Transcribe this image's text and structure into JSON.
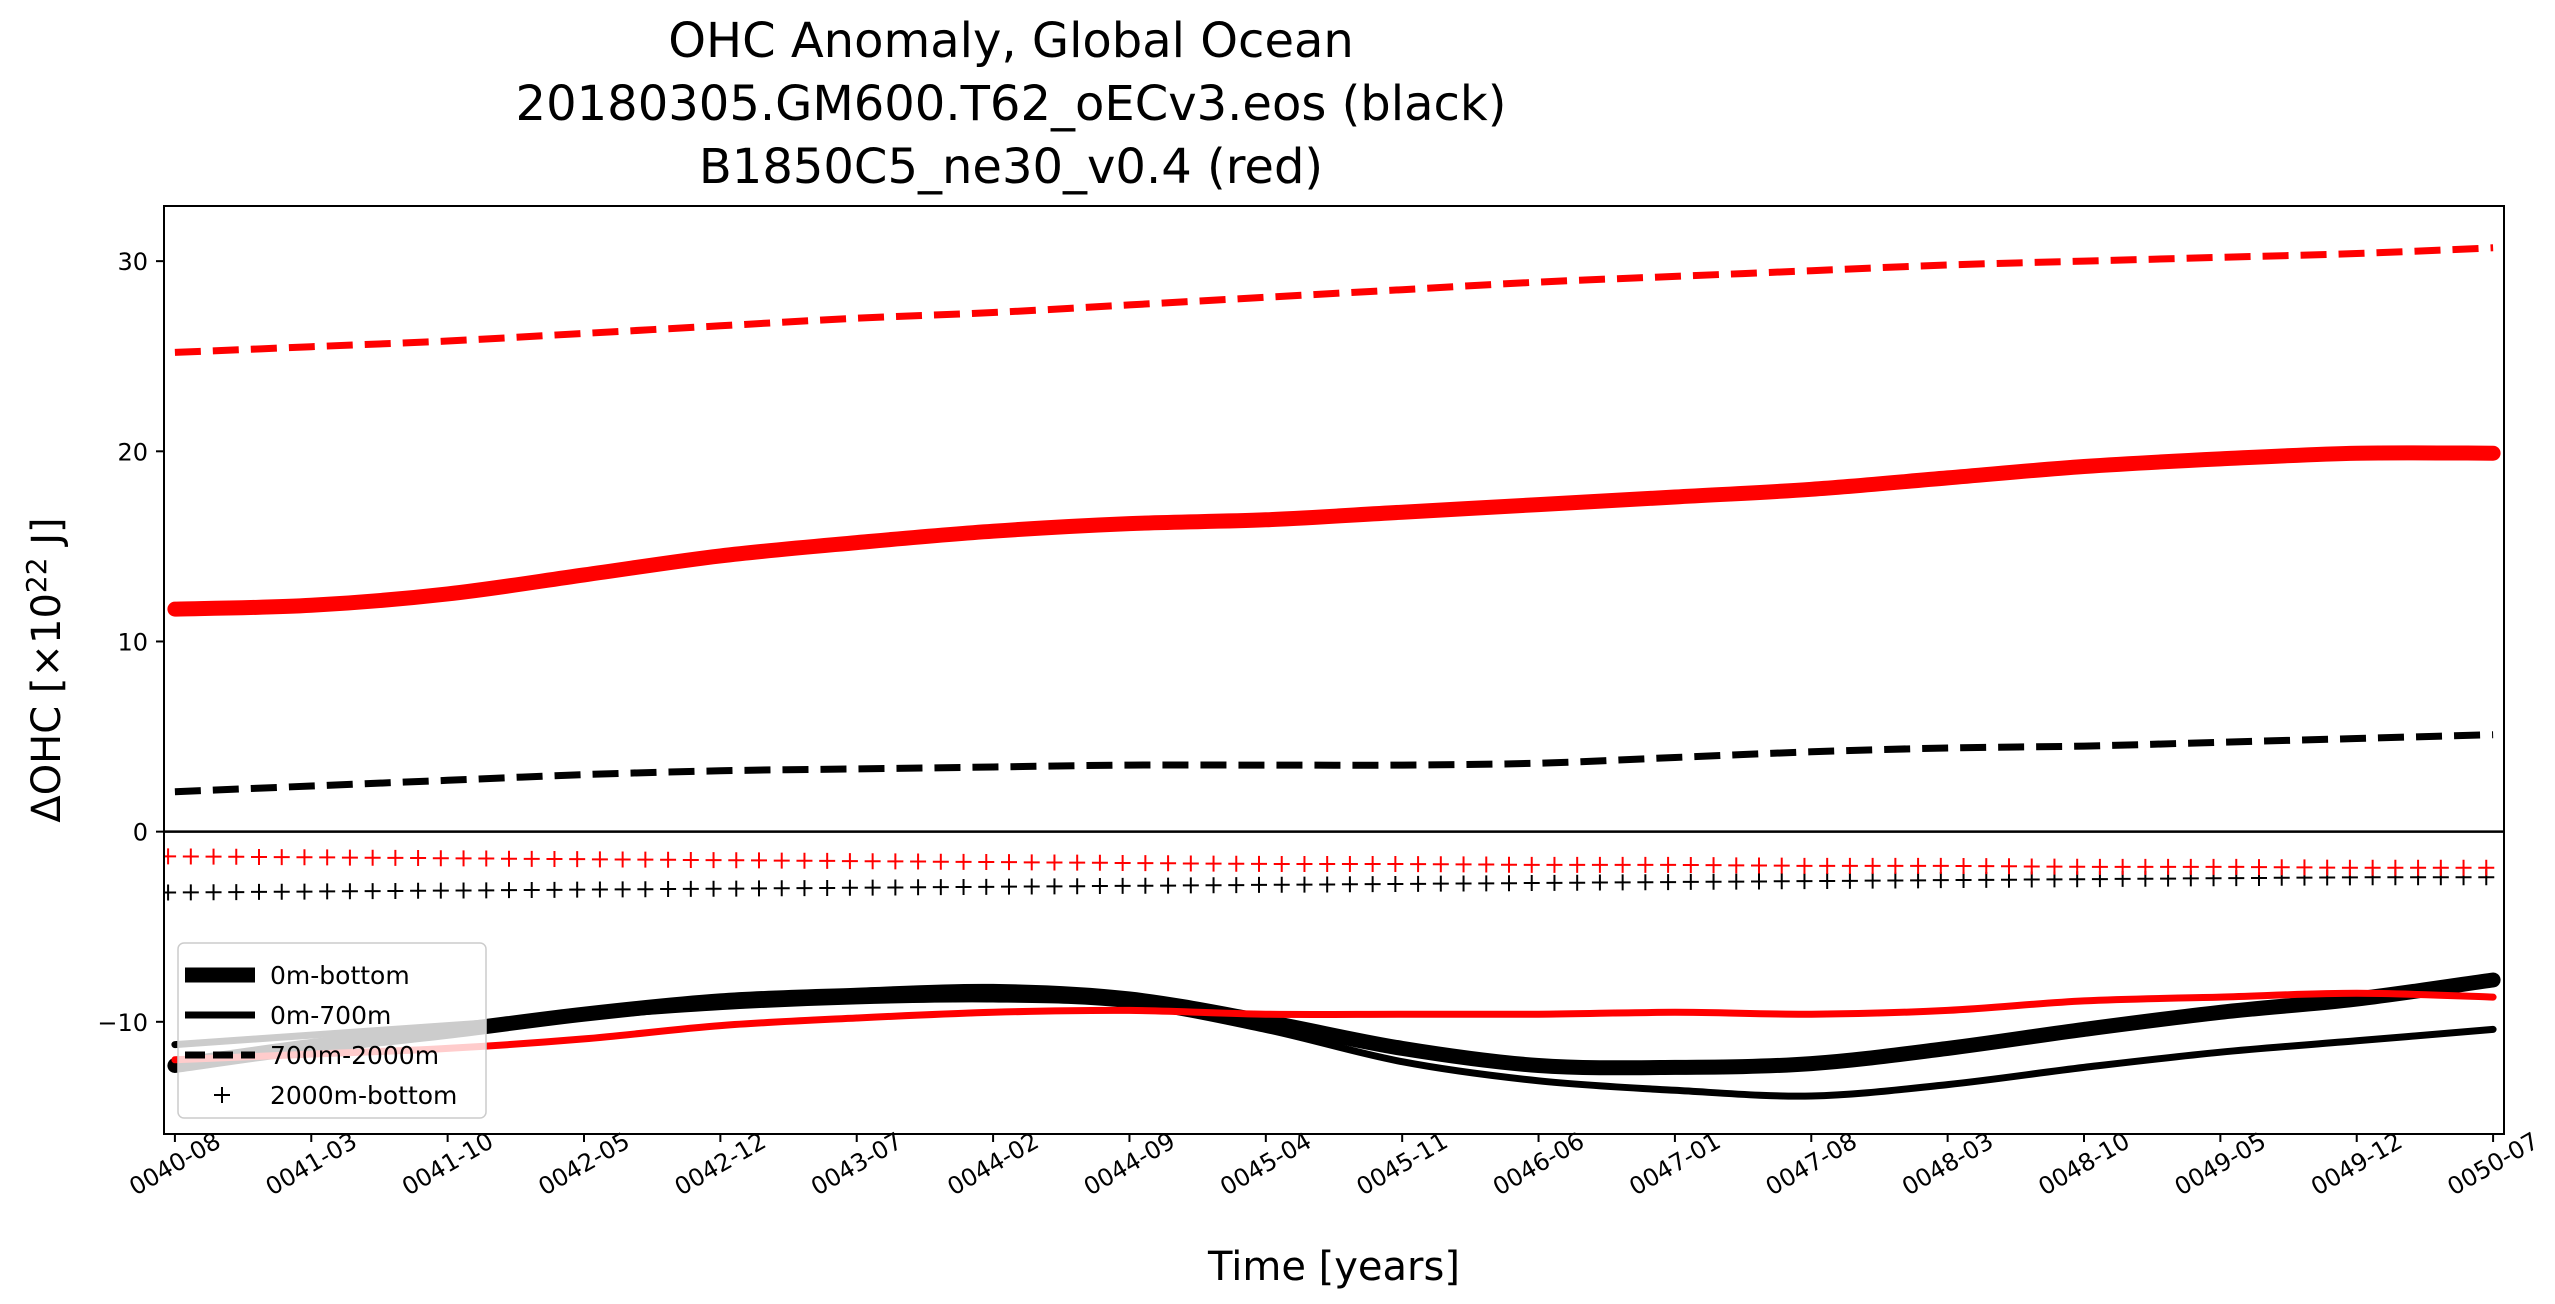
{
  "chart_data": {
    "type": "line",
    "title": [
      "OHC Anomaly, Global Ocean",
      "20180305.GM600.T62_oECv3.eos (black)",
      "B1850C5_ne30_v0.4 (red)"
    ],
    "xlabel": "Time [years]",
    "ylabel_prefix": "ΔOHC [×10",
    "ylabel_exp": "22",
    "ylabel_suffix": " J]",
    "x_ticks": [
      "0040-08",
      "0041-03",
      "0041-10",
      "0042-05",
      "0042-12",
      "0043-07",
      "0044-02",
      "0044-09",
      "0045-04",
      "0045-11",
      "0046-06",
      "0047-01",
      "0047-08",
      "0048-03",
      "0048-10",
      "0049-05",
      "0049-12",
      "0050-07"
    ],
    "xlim": [
      -0.08,
      17.08
    ],
    "ylim": [
      -15.9,
      32.9
    ],
    "y_ticks": [
      -10,
      0,
      10,
      20,
      30
    ],
    "y_tick_labels": [
      "−10",
      "0",
      "10",
      "20",
      "30"
    ],
    "zero_line": 0,
    "legend": {
      "location": "lower-left",
      "entries": [
        {
          "label": "0m-bottom",
          "style": "thick"
        },
        {
          "label": "0m-700m",
          "style": "solid"
        },
        {
          "label": "700m-2000m",
          "style": "dashed"
        },
        {
          "label": "2000m-bottom",
          "style": "plus"
        }
      ]
    },
    "series": [
      {
        "name": "0m-bottom (black)",
        "color": "#000000",
        "style": "thick",
        "x": [
          0,
          1,
          2,
          3,
          4,
          5,
          6,
          7,
          8,
          9,
          10,
          11,
          12,
          13,
          14,
          15,
          16,
          17
        ],
        "y": [
          -12.3,
          -11.3,
          -10.5,
          -9.6,
          -8.9,
          -8.6,
          -8.4,
          -8.8,
          -10.0,
          -11.4,
          -12.3,
          -12.4,
          -12.2,
          -11.4,
          -10.4,
          -9.5,
          -8.8,
          -7.8
        ]
      },
      {
        "name": "0m-700m (black)",
        "color": "#000000",
        "style": "solid",
        "x": [
          0,
          1,
          2,
          3,
          4,
          5,
          6,
          7,
          8,
          9,
          10,
          11,
          12,
          13,
          14,
          15,
          16,
          17
        ],
        "y": [
          -11.2,
          -10.7,
          -10.2,
          -9.7,
          -9.2,
          -8.9,
          -8.8,
          -9.1,
          -10.4,
          -12.1,
          -13.1,
          -13.6,
          -13.9,
          -13.3,
          -12.4,
          -11.6,
          -11.0,
          -10.4
        ]
      },
      {
        "name": "700m-2000m (black)",
        "color": "#000000",
        "style": "dashed",
        "x": [
          0,
          1,
          2,
          3,
          4,
          5,
          6,
          7,
          8,
          9,
          10,
          11,
          12,
          13,
          14,
          15,
          16,
          17
        ],
        "y": [
          2.1,
          2.4,
          2.7,
          3.0,
          3.2,
          3.3,
          3.4,
          3.5,
          3.5,
          3.5,
          3.6,
          3.9,
          4.2,
          4.4,
          4.5,
          4.7,
          4.9,
          5.1
        ]
      },
      {
        "name": "2000m-bottom (black)",
        "color": "#000000",
        "style": "plus",
        "x": [
          0,
          1,
          2,
          3,
          4,
          5,
          6,
          7,
          8,
          9,
          10,
          11,
          12,
          13,
          14,
          15,
          16,
          17
        ],
        "y": [
          -3.2,
          -3.15,
          -3.1,
          -3.05,
          -3.0,
          -2.95,
          -2.9,
          -2.85,
          -2.8,
          -2.75,
          -2.7,
          -2.65,
          -2.6,
          -2.55,
          -2.5,
          -2.45,
          -2.4,
          -2.4
        ]
      },
      {
        "name": "0m-bottom (red)",
        "color": "#ff0000",
        "style": "thick",
        "x": [
          0,
          1,
          2,
          3,
          4,
          5,
          6,
          7,
          8,
          9,
          10,
          11,
          12,
          13,
          14,
          15,
          16,
          17
        ],
        "y": [
          11.7,
          11.9,
          12.5,
          13.5,
          14.5,
          15.2,
          15.8,
          16.2,
          16.4,
          16.8,
          17.2,
          17.6,
          18.0,
          18.6,
          19.2,
          19.6,
          19.9,
          19.9
        ]
      },
      {
        "name": "0m-700m (red)",
        "color": "#ff0000",
        "style": "solid",
        "x": [
          0,
          1,
          2,
          3,
          4,
          5,
          6,
          7,
          8,
          9,
          10,
          11,
          12,
          13,
          14,
          15,
          16,
          17
        ],
        "y": [
          -12.0,
          -11.7,
          -11.4,
          -10.9,
          -10.2,
          -9.8,
          -9.5,
          -9.4,
          -9.6,
          -9.6,
          -9.6,
          -9.5,
          -9.6,
          -9.4,
          -8.9,
          -8.7,
          -8.5,
          -8.7
        ]
      },
      {
        "name": "700m-2000m (red)",
        "color": "#ff0000",
        "style": "dashed",
        "x": [
          0,
          1,
          2,
          3,
          4,
          5,
          6,
          7,
          8,
          9,
          10,
          11,
          12,
          13,
          14,
          15,
          16,
          17
        ],
        "y": [
          25.2,
          25.5,
          25.8,
          26.2,
          26.6,
          27.0,
          27.3,
          27.7,
          28.1,
          28.5,
          28.9,
          29.2,
          29.5,
          29.8,
          30.0,
          30.2,
          30.4,
          30.7
        ]
      },
      {
        "name": "2000m-bottom (red)",
        "color": "#ff0000",
        "style": "plus",
        "x": [
          0,
          1,
          2,
          3,
          4,
          5,
          6,
          7,
          8,
          9,
          10,
          11,
          12,
          13,
          14,
          15,
          16,
          17
        ],
        "y": [
          -1.3,
          -1.35,
          -1.4,
          -1.45,
          -1.5,
          -1.55,
          -1.6,
          -1.65,
          -1.7,
          -1.7,
          -1.75,
          -1.75,
          -1.8,
          -1.8,
          -1.85,
          -1.85,
          -1.9,
          -1.9
        ]
      }
    ]
  }
}
